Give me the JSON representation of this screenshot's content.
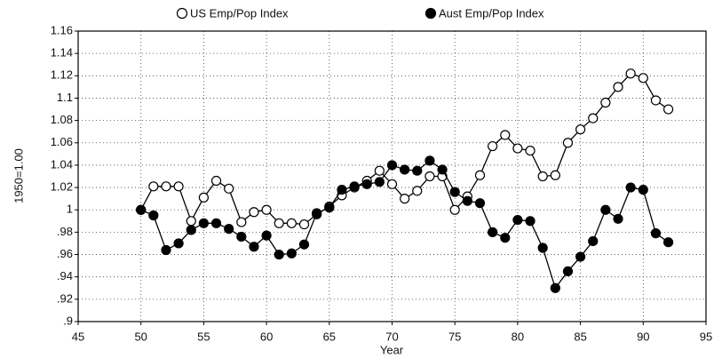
{
  "chart_data": {
    "type": "line",
    "y_label": "1950=1.00",
    "x_label": "Year",
    "x": [
      50,
      51,
      52,
      53,
      54,
      55,
      56,
      57,
      58,
      59,
      60,
      61,
      62,
      63,
      64,
      65,
      66,
      67,
      68,
      69,
      70,
      71,
      72,
      73,
      74,
      75,
      76,
      77,
      78,
      79,
      80,
      81,
      82,
      83,
      84,
      85,
      86,
      87,
      88,
      89,
      90,
      91,
      92
    ],
    "series": [
      {
        "name": "US Emp/Pop Index",
        "color": "#000000",
        "marker_fill": "#ffffff",
        "values": [
          1.0,
          1.021,
          1.021,
          1.021,
          0.99,
          1.011,
          1.026,
          1.019,
          0.989,
          0.998,
          1.0,
          0.988,
          0.988,
          0.987,
          0.996,
          1.003,
          1.013,
          1.02,
          1.026,
          1.035,
          1.023,
          1.01,
          1.017,
          1.03,
          1.03,
          1.0,
          1.012,
          1.031,
          1.057,
          1.067,
          1.055,
          1.053,
          1.03,
          1.031,
          1.06,
          1.072,
          1.082,
          1.096,
          1.11,
          1.122,
          1.118,
          1.098,
          1.09
        ]
      },
      {
        "name": "Aust Emp/Pop Index",
        "color": "#000000",
        "marker_fill": "#000000",
        "values": [
          1.0,
          0.995,
          0.964,
          0.97,
          0.982,
          0.988,
          0.988,
          0.983,
          0.976,
          0.967,
          0.977,
          0.96,
          0.961,
          0.969,
          0.997,
          1.002,
          1.018,
          1.021,
          1.023,
          1.025,
          1.04,
          1.036,
          1.035,
          1.044,
          1.036,
          1.016,
          1.008,
          1.006,
          0.98,
          0.975,
          0.991,
          0.99,
          0.966,
          0.93,
          0.945,
          0.958,
          0.972,
          1.0,
          0.992,
          1.02,
          1.018,
          0.979,
          0.971
        ]
      }
    ],
    "xlim": [
      45,
      95
    ],
    "xticks": [
      45,
      50,
      55,
      60,
      65,
      70,
      75,
      80,
      85,
      90,
      95
    ],
    "ylim": [
      0.9,
      1.16
    ],
    "yticks": [
      {
        "value": 0.9,
        "label": ".9"
      },
      {
        "value": 0.92,
        "label": ".92"
      },
      {
        "value": 0.94,
        "label": ".94"
      },
      {
        "value": 0.96,
        "label": ".96"
      },
      {
        "value": 0.98,
        "label": ".98"
      },
      1,
      1.02,
      1.04,
      1.06,
      1.08,
      1.1,
      1.12,
      1.14,
      1.16
    ],
    "grid": true
  }
}
